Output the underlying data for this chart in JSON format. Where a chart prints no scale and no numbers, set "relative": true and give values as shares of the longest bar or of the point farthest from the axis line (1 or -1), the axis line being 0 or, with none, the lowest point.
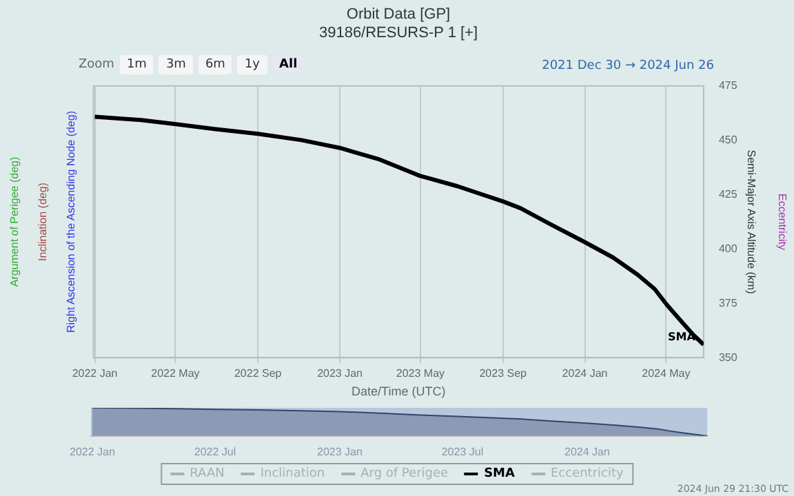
{
  "chart_data": [
    {
      "type": "line",
      "title": "Orbit Data [GP]",
      "subtitle": "39186/RESURS-P 1 [+]",
      "xlabel": "Date/Time (UTC)",
      "ylabel": "Semi-Major Axis Altitude (km)",
      "x": [
        "2022-01-01",
        "2022-03-11",
        "2022-05-02",
        "2022-06-28",
        "2022-09-01",
        "2022-11-05",
        "2023-01-01",
        "2023-03-01",
        "2023-04-30",
        "2023-06-25",
        "2023-09-01",
        "2023-09-27",
        "2023-11-10",
        "2023-12-31",
        "2024-02-12",
        "2024-03-20",
        "2024-04-14",
        "2024-05-02",
        "2024-05-24",
        "2024-06-11",
        "2024-06-26"
      ],
      "series": [
        {
          "name": "RAAN",
          "color": "#a8b0b0",
          "values": [
            null,
            null,
            null,
            null,
            null,
            null,
            null,
            null,
            null,
            null,
            null,
            null,
            null,
            null,
            null,
            null,
            null,
            null,
            null,
            null,
            null
          ]
        },
        {
          "name": "Inclination",
          "color": "#a8b0b0",
          "values": [
            null,
            null,
            null,
            null,
            null,
            null,
            null,
            null,
            null,
            null,
            null,
            null,
            null,
            null,
            null,
            null,
            null,
            null,
            null,
            null,
            null
          ]
        },
        {
          "name": "Arg of Perigee",
          "color": "#a8b0b0",
          "values": [
            null,
            null,
            null,
            null,
            null,
            null,
            null,
            null,
            null,
            null,
            null,
            null,
            null,
            null,
            null,
            null,
            null,
            null,
            null,
            null,
            null
          ]
        },
        {
          "name": "SMA",
          "color": "#000000",
          "values": [
            460.8,
            459.3,
            457.4,
            455.2,
            453.0,
            450.1,
            446.5,
            441.2,
            433.7,
            428.9,
            421.9,
            418.8,
            411.5,
            403.3,
            396.1,
            388.1,
            381.6,
            374.4,
            366.6,
            360.4,
            356.0
          ]
        },
        {
          "name": "Eccentricity",
          "color": "#a8b0b0",
          "values": [
            null,
            null,
            null,
            null,
            null,
            null,
            null,
            null,
            null,
            null,
            null,
            null,
            null,
            null,
            null,
            null,
            null,
            null,
            null,
            null,
            null
          ]
        }
      ],
      "xlim": [
        "2021-12-30",
        "2024-06-26"
      ],
      "xticks": [
        {
          "value": "2022-01-01",
          "label": "2022 Jan"
        },
        {
          "value": "2022-05-01",
          "label": "2022 May"
        },
        {
          "value": "2022-09-01",
          "label": "2022 Sep"
        },
        {
          "value": "2023-01-01",
          "label": "2023 Jan"
        },
        {
          "value": "2023-05-01",
          "label": "2023 May"
        },
        {
          "value": "2023-09-01",
          "label": "2023 Sep"
        },
        {
          "value": "2024-01-01",
          "label": "2024 Jan"
        },
        {
          "value": "2024-05-01",
          "label": "2024 May"
        }
      ],
      "ylim": [
        350,
        475
      ],
      "yticks": [
        350,
        375,
        400,
        425,
        450,
        475
      ],
      "grid": "x",
      "legend": "bottom",
      "marker": "none",
      "line_style": "solid",
      "annotations": [
        "Zoom",
        "1m",
        "3m",
        "6m",
        "1y",
        "All",
        "2021 Dec 30 → 2024 Jun 26",
        "2024 Jun 29 21:30 UTC",
        "Right Ascension of the Ascending Node (deg)",
        "Inclination (deg)",
        "Argument of Perigee (deg)",
        "Eccentricity"
      ]
    },
    {
      "type": "area",
      "relative": true,
      "tick_labels": "x",
      "x": [
        "2022-01-01",
        "2022-03-11",
        "2022-05-02",
        "2022-06-28",
        "2022-09-01",
        "2022-11-05",
        "2023-01-01",
        "2023-03-01",
        "2023-04-30",
        "2023-06-25",
        "2023-09-01",
        "2023-09-27",
        "2023-11-10",
        "2023-12-31",
        "2024-02-12",
        "2024-03-20",
        "2024-04-14",
        "2024-05-02",
        "2024-05-24",
        "2024-06-11",
        "2024-06-26"
      ],
      "series": [
        {
          "color": "#33446b",
          "values": [
            1,
            0.986,
            0.968,
            0.947,
            0.926,
            0.898,
            0.864,
            0.813,
            0.741,
            0.696,
            0.629,
            0.599,
            0.53,
            0.452,
            0.383,
            0.307,
            0.245,
            0.176,
            0.101,
            0.042,
            0
          ]
        }
      ],
      "xlim": [
        "2021-12-30",
        "2024-06-26"
      ],
      "xticks": [
        {
          "value": "2022-01-01",
          "label": "2022 Jan"
        },
        {
          "value": "2022-07-01",
          "label": "2022 Jul"
        },
        {
          "value": "2023-01-01",
          "label": "2023 Jan"
        },
        {
          "value": "2023-07-01",
          "label": "2023 Jul"
        },
        {
          "value": "2024-01-01",
          "label": "2024 Jan"
        }
      ]
    }
  ]
}
